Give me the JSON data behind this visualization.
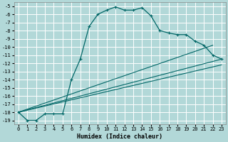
{
  "xlabel": "Humidex (Indice chaleur)",
  "background_color": "#b2d8d8",
  "grid_color": "#ffffff",
  "line_color": "#006666",
  "xlim": [
    -0.5,
    23.5
  ],
  "ylim": [
    -19.5,
    -4.5
  ],
  "xticks": [
    0,
    1,
    2,
    3,
    4,
    5,
    6,
    7,
    8,
    9,
    10,
    11,
    12,
    13,
    14,
    15,
    16,
    17,
    18,
    19,
    20,
    21,
    22,
    23
  ],
  "yticks": [
    -5,
    -6,
    -7,
    -8,
    -9,
    -10,
    -11,
    -12,
    -13,
    -14,
    -15,
    -16,
    -17,
    -18,
    -19
  ],
  "line1_x": [
    0,
    1,
    2,
    3,
    4,
    5,
    6,
    7,
    8,
    9,
    10,
    11,
    12,
    13,
    14,
    15,
    16,
    17,
    18,
    19,
    20,
    21,
    22,
    23
  ],
  "line1_y": [
    -18,
    -19,
    -19,
    -18.2,
    -18.2,
    -18.2,
    -14,
    -11.5,
    -7.5,
    -6,
    -5.5,
    -5.1,
    -5.5,
    -5.5,
    -5.2,
    -6.2,
    -8.0,
    -8.3,
    -8.5,
    -8.5,
    -9.3,
    -9.8,
    -11.0,
    -11.5
  ],
  "line2_x": [
    0,
    23
  ],
  "line2_y": [
    -18,
    -11.5
  ],
  "line3_x": [
    0,
    22
  ],
  "line3_y": [
    -18,
    -9.8
  ],
  "line4_x": [
    0,
    23
  ],
  "line4_y": [
    -18,
    -12.2
  ]
}
